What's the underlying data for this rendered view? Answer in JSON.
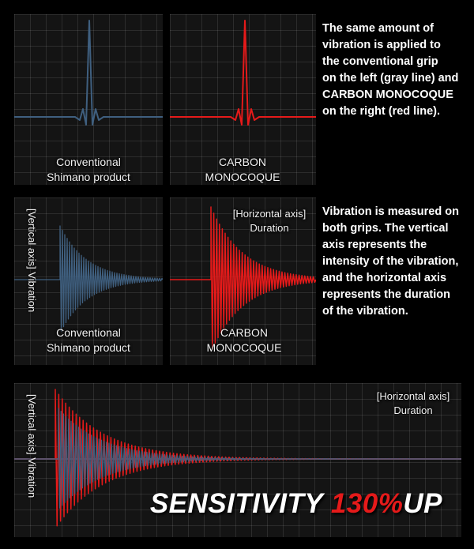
{
  "colors": {
    "conventional": "#3f5f7f",
    "carbon": "#e51a1a",
    "baseline": "#3f5f7f"
  },
  "top": {
    "left_label": [
      "Conventional",
      "Shimano product"
    ],
    "right_label": [
      "CARBON",
      "MONOCOQUE"
    ],
    "description": [
      "The same amount of",
      "vibration is applied to",
      "the conventional grip",
      "on the left (gray line) and",
      "CARBON MONOCOQUE",
      "on the right (red line)."
    ]
  },
  "middle": {
    "vertical_axis_label": "[Vertical axis] Vibration",
    "horizontal_axis_label": [
      "[Horizontal axis]",
      "Duration"
    ],
    "left_label": [
      "Conventional",
      "Shimano product"
    ],
    "right_label": [
      "CARBON",
      "MONOCOQUE"
    ],
    "description": [
      "Vibration is measured on",
      "both grips. The vertical",
      "axis represents the",
      "intensity of the vibration,",
      "and the horizontal axis",
      "represents the duration",
      "of the vibration."
    ]
  },
  "bottom": {
    "vertical_axis_label": "[Vertical axis] Vibration",
    "horizontal_axis_label": [
      "[Horizontal axis]",
      "Duration"
    ],
    "tagline_prefix": "SENSITIVITY ",
    "tagline_highlight": "130%",
    "tagline_suffix": "UP"
  },
  "chart_data": [
    {
      "type": "line",
      "name": "Input pulse - Conventional Shimano product",
      "series": [
        {
          "name": "Conventional Shimano product",
          "color": "#3f5f7f"
        }
      ]
    },
    {
      "type": "line",
      "name": "Input pulse - CARBON MONOCOQUE",
      "series": [
        {
          "name": "CARBON MONOCOQUE",
          "color": "#e51a1a"
        }
      ]
    },
    {
      "type": "line",
      "name": "Damped vibration - Conventional Shimano product",
      "xlabel": "[Horizontal axis] Duration",
      "ylabel": "[Vertical axis] Vibration"
    },
    {
      "type": "line",
      "name": "Damped vibration - CARBON MONOCOQUE",
      "xlabel": "[Horizontal axis] Duration",
      "ylabel": "[Vertical axis] Vibration"
    },
    {
      "type": "line",
      "name": "Overlay comparison",
      "xlabel": "[Horizontal axis] Duration",
      "ylabel": "[Vertical axis] Vibration"
    }
  ]
}
